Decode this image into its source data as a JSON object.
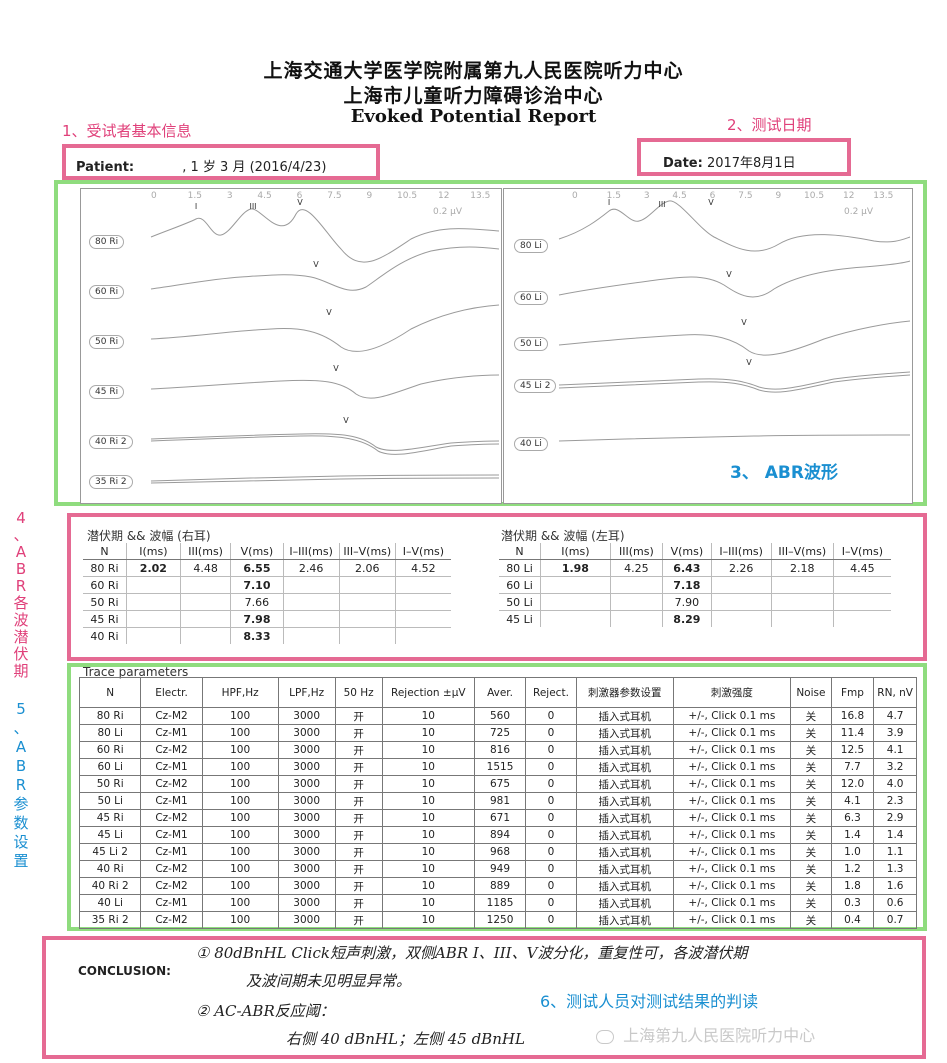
{
  "header": {
    "line1": "上海交通大学医学院附属第九人民医院听力中心",
    "line2": "上海市儿童听力障碍诊治中心",
    "line3": "Evoked Potential Report"
  },
  "annotations": {
    "a1": "1、受试者基本信息",
    "a2": "2、测试日期",
    "a3": "3、 ABR波形",
    "a4": [
      "4",
      "、",
      "A",
      "B",
      "R",
      "各",
      "波",
      "潜",
      "伏",
      "期"
    ],
    "a5": [
      "5",
      "、",
      "A",
      "B",
      "R",
      "参",
      "数",
      "设",
      "置"
    ],
    "a6": "6、测试人员对测试结果的判读"
  },
  "patient": {
    "label": "Patient:",
    "value": ", 1 岁 3 月 (2016/4/23)"
  },
  "date": {
    "label": "Date:",
    "value": "2017年8月1日"
  },
  "waveform": {
    "scale_ticks": [
      "0",
      "1.5",
      "3",
      "4.5",
      "6",
      "7.5",
      "9",
      "10.5",
      "12",
      "13.5"
    ],
    "amp": "0.2 μV",
    "left_traces": [
      "80 Ri",
      "60 Ri",
      "50 Ri",
      "45 Ri",
      "40 Ri 2",
      "35 Ri 2"
    ],
    "right_traces": [
      "80 Li",
      "60 Li",
      "50 Li",
      "45 Li 2",
      "40 Li"
    ],
    "marks": {
      "I": "I",
      "III": "III",
      "V": "V"
    }
  },
  "latency": {
    "right": {
      "title": "潜伏期 && 波幅 (右耳)",
      "headers": [
        "N",
        "I(ms)",
        "III(ms)",
        "V(ms)",
        "I–III(ms)",
        "III–V(ms)",
        "I–V(ms)"
      ],
      "rows": [
        [
          "80 Ri",
          "2.02",
          "4.48",
          "6.55",
          "2.46",
          "2.06",
          "4.52"
        ],
        [
          "60 Ri",
          "",
          "",
          "7.10",
          "",
          "",
          ""
        ],
        [
          "50 Ri",
          "",
          "",
          "7.66",
          "",
          "",
          ""
        ],
        [
          "45 Ri",
          "",
          "",
          "7.98",
          "",
          "",
          ""
        ],
        [
          "40 Ri",
          "",
          "",
          "8.33",
          "",
          "",
          ""
        ]
      ]
    },
    "left": {
      "title": "潜伏期 && 波幅 (左耳)",
      "headers": [
        "N",
        "I(ms)",
        "III(ms)",
        "V(ms)",
        "I–III(ms)",
        "III–V(ms)",
        "I–V(ms)"
      ],
      "rows": [
        [
          "80 Li",
          "1.98",
          "4.25",
          "6.43",
          "2.26",
          "2.18",
          "4.45"
        ],
        [
          "60 Li",
          "",
          "",
          "7.18",
          "",
          "",
          ""
        ],
        [
          "50 Li",
          "",
          "",
          "7.90",
          "",
          "",
          ""
        ],
        [
          "45 Li",
          "",
          "",
          "8.29",
          "",
          "",
          ""
        ]
      ]
    }
  },
  "params": {
    "title": "Trace parameters",
    "headers": [
      "N",
      "Electr.",
      "HPF,Hz",
      "LPF,Hz",
      "50 Hz",
      "Rejection ±μV",
      "Aver.",
      "Reject.",
      "刺激器参数设置",
      "刺激强度",
      "Noise",
      "Fmp",
      "RN, nV"
    ],
    "rows": [
      [
        "80 Ri",
        "Cz-M2",
        "100",
        "3000",
        "开",
        "10",
        "560",
        "0",
        "插入式耳机",
        "+/-, Click 0.1 ms",
        "关",
        "16.8",
        "4.7"
      ],
      [
        "80 Li",
        "Cz-M1",
        "100",
        "3000",
        "开",
        "10",
        "725",
        "0",
        "插入式耳机",
        "+/-, Click 0.1 ms",
        "关",
        "11.4",
        "3.9"
      ],
      [
        "60 Ri",
        "Cz-M2",
        "100",
        "3000",
        "开",
        "10",
        "816",
        "0",
        "插入式耳机",
        "+/-, Click 0.1 ms",
        "关",
        "12.5",
        "4.1"
      ],
      [
        "60 Li",
        "Cz-M1",
        "100",
        "3000",
        "开",
        "10",
        "1515",
        "0",
        "插入式耳机",
        "+/-, Click 0.1 ms",
        "关",
        "7.7",
        "3.2"
      ],
      [
        "50 Ri",
        "Cz-M2",
        "100",
        "3000",
        "开",
        "10",
        "675",
        "0",
        "插入式耳机",
        "+/-, Click 0.1 ms",
        "关",
        "12.0",
        "4.0"
      ],
      [
        "50 Li",
        "Cz-M1",
        "100",
        "3000",
        "开",
        "10",
        "981",
        "0",
        "插入式耳机",
        "+/-, Click 0.1 ms",
        "关",
        "4.1",
        "2.3"
      ],
      [
        "45 Ri",
        "Cz-M2",
        "100",
        "3000",
        "开",
        "10",
        "671",
        "0",
        "插入式耳机",
        "+/-, Click 0.1 ms",
        "关",
        "6.3",
        "2.9"
      ],
      [
        "45 Li",
        "Cz-M1",
        "100",
        "3000",
        "开",
        "10",
        "894",
        "0",
        "插入式耳机",
        "+/-, Click 0.1 ms",
        "关",
        "1.4",
        "1.4"
      ],
      [
        "45 Li 2",
        "Cz-M1",
        "100",
        "3000",
        "开",
        "10",
        "968",
        "0",
        "插入式耳机",
        "+/-, Click 0.1 ms",
        "关",
        "1.0",
        "1.1"
      ],
      [
        "40 Ri",
        "Cz-M2",
        "100",
        "3000",
        "开",
        "10",
        "949",
        "0",
        "插入式耳机",
        "+/-, Click 0.1 ms",
        "关",
        "1.2",
        "1.3"
      ],
      [
        "40 Ri 2",
        "Cz-M2",
        "100",
        "3000",
        "开",
        "10",
        "889",
        "0",
        "插入式耳机",
        "+/-, Click 0.1 ms",
        "关",
        "1.8",
        "1.6"
      ],
      [
        "40 Li",
        "Cz-M1",
        "100",
        "3000",
        "开",
        "10",
        "1185",
        "0",
        "插入式耳机",
        "+/-, Click 0.1 ms",
        "关",
        "0.3",
        "0.6"
      ],
      [
        "35 Ri 2",
        "Cz-M2",
        "100",
        "3000",
        "开",
        "10",
        "1250",
        "0",
        "插入式耳机",
        "+/-, Click 0.1 ms",
        "关",
        "0.4",
        "0.7"
      ]
    ]
  },
  "conclusion": {
    "label": "CONCLUSION:",
    "line1": "① 80dBnHL Click短声刺激，双侧ABR I、III、V波分化，重复性可，各波潜伏期",
    "line2": "及波间期未见明显异常。",
    "line3": "② AC-ABR反应阈：",
    "line4": "右侧 40 dBnHL；左侧 45 dBnHL"
  },
  "watermark": "上海第九人民医院听力中心"
}
